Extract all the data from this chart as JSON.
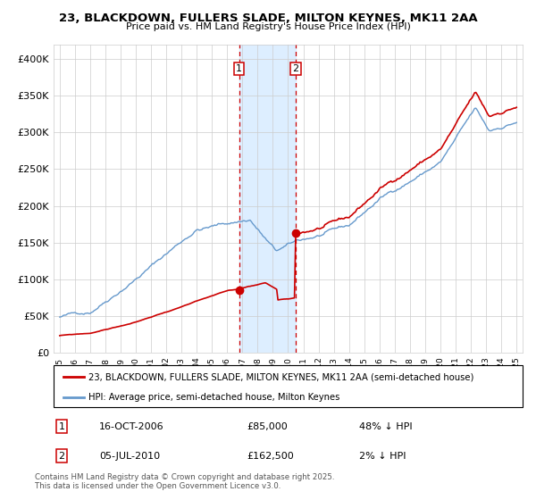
{
  "title": "23, BLACKDOWN, FULLERS SLADE, MILTON KEYNES, MK11 2AA",
  "subtitle": "Price paid vs. HM Land Registry's House Price Index (HPI)",
  "legend_line1": "23, BLACKDOWN, FULLERS SLADE, MILTON KEYNES, MK11 2AA (semi-detached house)",
  "legend_line2": "HPI: Average price, semi-detached house, Milton Keynes",
  "footer_line1": "Contains HM Land Registry data © Crown copyright and database right 2025.",
  "footer_line2": "This data is licensed under the Open Government Licence v3.0.",
  "annotation1_label": "1",
  "annotation1_date": "16-OCT-2006",
  "annotation1_price": "£85,000",
  "annotation1_hpi": "48% ↓ HPI",
  "annotation2_label": "2",
  "annotation2_date": "05-JUL-2010",
  "annotation2_price": "£162,500",
  "annotation2_hpi": "2% ↓ HPI",
  "marker1_year": 2006.79,
  "marker1_price": 85000,
  "marker2_year": 2010.5,
  "marker2_price": 162500,
  "price_line_color": "#cc0000",
  "hpi_line_color": "#6699cc",
  "shade_color": "#ddeeff",
  "ylim": [
    0,
    420000
  ],
  "ytick_values": [
    0,
    50000,
    100000,
    150000,
    200000,
    250000,
    300000,
    350000,
    400000
  ],
  "ytick_labels": [
    "£0",
    "£50K",
    "£100K",
    "£150K",
    "£200K",
    "£250K",
    "£300K",
    "£350K",
    "£400K"
  ],
  "grid_color": "#cccccc",
  "start_year": 1995,
  "end_year": 2025
}
